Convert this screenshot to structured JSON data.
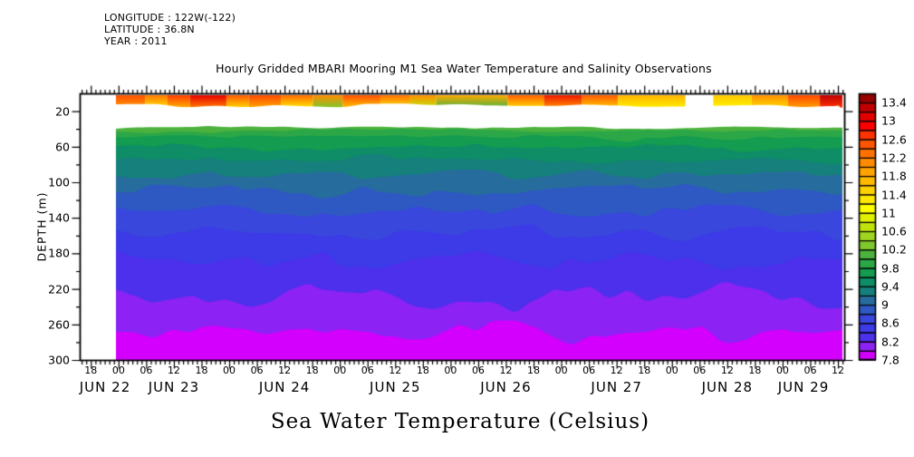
{
  "info_block": {
    "longitude": "LONGITUDE : 122W(-122)",
    "latitude": "LATITUDE : 36.8N",
    "year": "YEAR : 2011"
  },
  "title": "Hourly Gridded MBARI Mooring M1 Sea Water Temperature and Salinity Observations",
  "footer_label": "Sea Water Temperature (Celsius)",
  "chart_data": {
    "type": "heatmap",
    "subtype": "filled-contour time-depth section",
    "title": "Hourly Gridded MBARI Mooring M1 Sea Water Temperature and Salinity Observations",
    "xlabel": "",
    "ylabel": "DEPTH (m)",
    "ylim": [
      0,
      300
    ],
    "y_tick_labels": [
      "20",
      "60",
      "100",
      "140",
      "180",
      "220",
      "260",
      "300"
    ],
    "y_minor_ticks": [
      40,
      80,
      120,
      160,
      200,
      240,
      280
    ],
    "x_time_tick_labels": [
      "18",
      "00",
      "06",
      "12",
      "18",
      "00",
      "06",
      "12",
      "18",
      "00",
      "06",
      "12",
      "18",
      "00",
      "06",
      "12",
      "18",
      "00",
      "06",
      "12",
      "18",
      "00",
      "06",
      "12",
      "18",
      "00",
      "06",
      "12"
    ],
    "x_date_labels": [
      "JUN 22",
      "JUN 23",
      "JUN 24",
      "JUN 25",
      "JUN 26",
      "JUN 27",
      "JUN 28",
      "JUN 29"
    ],
    "colorbar": {
      "units": "Celsius",
      "value_min": 7.8,
      "value_max": 13.6,
      "cell_step": 0.2,
      "tick_labels": [
        "13.4",
        "13",
        "12.6",
        "12.2",
        "11.8",
        "11.4",
        "11",
        "10.6",
        "10.2",
        "9.8",
        "9.4",
        "9",
        "8.6",
        "8.2",
        "7.8"
      ],
      "colors_top_to_bottom": [
        "#960000",
        "#bf0000",
        "#e30000",
        "#fb0000",
        "#ff3200",
        "#ff5400",
        "#ff7100",
        "#ff8b00",
        "#ffa300",
        "#ffba00",
        "#ffd100",
        "#ffe800",
        "#fefe00",
        "#dff000",
        "#bfe30b",
        "#9fd51f",
        "#7fc72d",
        "#4cb23d",
        "#2ca748",
        "#149c50",
        "#0e8d67",
        "#16807c",
        "#266d9d",
        "#2e59c2",
        "#3947dc",
        "#3d3ae8",
        "#4d30ec",
        "#8c22f4",
        "#d400fd"
      ]
    },
    "surface_layer": {
      "depth_top_m": 2,
      "depth_bottom_m": 15,
      "gap_frac": [
        0.784,
        0.822
      ],
      "segments": [
        {
          "f0": 0.0,
          "f1": 0.04,
          "top": "#ff5000",
          "bottom": "#ff9800"
        },
        {
          "f0": 0.04,
          "f1": 0.071,
          "top": "#ff7a00",
          "bottom": "#ffdf00"
        },
        {
          "f0": 0.071,
          "f1": 0.102,
          "top": "#ff3c00",
          "bottom": "#ffb000"
        },
        {
          "f0": 0.102,
          "f1": 0.152,
          "top": "#e80000",
          "bottom": "#ff7a00"
        },
        {
          "f0": 0.152,
          "f1": 0.183,
          "top": "#ff5a00",
          "bottom": "#ffd400"
        },
        {
          "f0": 0.183,
          "f1": 0.227,
          "top": "#ff4800",
          "bottom": "#ffa800"
        },
        {
          "f0": 0.227,
          "f1": 0.271,
          "top": "#ff6a00",
          "bottom": "#ffe800"
        },
        {
          "f0": 0.271,
          "f1": 0.312,
          "top": "#ff8c00",
          "bottom": "#7fc72d"
        },
        {
          "f0": 0.312,
          "f1": 0.364,
          "top": "#ff5000",
          "bottom": "#ffc000"
        },
        {
          "f0": 0.364,
          "f1": 0.404,
          "top": "#ff7000",
          "bottom": "#ffe000"
        },
        {
          "f0": 0.404,
          "f1": 0.441,
          "top": "#ff9000",
          "bottom": "#bfe30b"
        },
        {
          "f0": 0.441,
          "f1": 0.539,
          "top": "#ffaa00",
          "bottom": "#4cb23d"
        },
        {
          "f0": 0.539,
          "f1": 0.589,
          "top": "#ff6000",
          "bottom": "#ffd800"
        },
        {
          "f0": 0.589,
          "f1": 0.641,
          "top": "#f01800",
          "bottom": "#ff8c00"
        },
        {
          "f0": 0.641,
          "f1": 0.691,
          "top": "#ff5a00",
          "bottom": "#ffc800"
        },
        {
          "f0": 0.691,
          "f1": 0.784,
          "top": "#ffb400",
          "bottom": "#ffee00"
        },
        {
          "f0": 0.822,
          "f1": 0.875,
          "top": "#ffc800",
          "bottom": "#fff200"
        },
        {
          "f0": 0.875,
          "f1": 0.925,
          "top": "#ff9000",
          "bottom": "#ffd800"
        },
        {
          "f0": 0.925,
          "f1": 0.969,
          "top": "#ff4800",
          "bottom": "#ffa000"
        },
        {
          "f0": 0.969,
          "f1": 1.0,
          "top": "#bf0000",
          "bottom": "#ff3200"
        }
      ]
    },
    "deep_layer": {
      "data_top_depth_m": 38,
      "bands_top_to_bottom": [
        {
          "temp_range_c": "10.0-10.2",
          "color": "#4cb23d",
          "mean_top_depth_m": 38.5,
          "amplitude_m": 2
        },
        {
          "temp_range_c": "9.8-10.0",
          "color": "#2ca748",
          "mean_top_depth_m": 42,
          "amplitude_m": 3
        },
        {
          "temp_range_c": "9.6-9.8",
          "color": "#149c50",
          "mean_top_depth_m": 50,
          "amplitude_m": 5
        },
        {
          "temp_range_c": "9.4-9.6",
          "color": "#0e8d67",
          "mean_top_depth_m": 61,
          "amplitude_m": 6
        },
        {
          "temp_range_c": "9.2-9.4",
          "color": "#16807c",
          "mean_top_depth_m": 74,
          "amplitude_m": 7
        },
        {
          "temp_range_c": "9.0-9.2",
          "color": "#266d9d",
          "mean_top_depth_m": 90,
          "amplitude_m": 8
        },
        {
          "temp_range_c": "8.8-9.0",
          "color": "#2e59c2",
          "mean_top_depth_m": 110,
          "amplitude_m": 10
        },
        {
          "temp_range_c": "8.6-8.8",
          "color": "#3947dc",
          "mean_top_depth_m": 133,
          "amplitude_m": 12
        },
        {
          "temp_range_c": "8.4-8.6",
          "color": "#3d3ae8",
          "mean_top_depth_m": 158,
          "amplitude_m": 13
        },
        {
          "temp_range_c": "8.2-8.4",
          "color": "#4d30ec",
          "mean_top_depth_m": 188,
          "amplitude_m": 16
        },
        {
          "temp_range_c": "8.0-8.2",
          "color": "#8c22f4",
          "mean_top_depth_m": 228,
          "amplitude_m": 24
        },
        {
          "temp_range_c": "7.8-8.0",
          "color": "#d400fd",
          "mean_top_depth_m": 272,
          "amplitude_m": 18
        }
      ]
    }
  }
}
